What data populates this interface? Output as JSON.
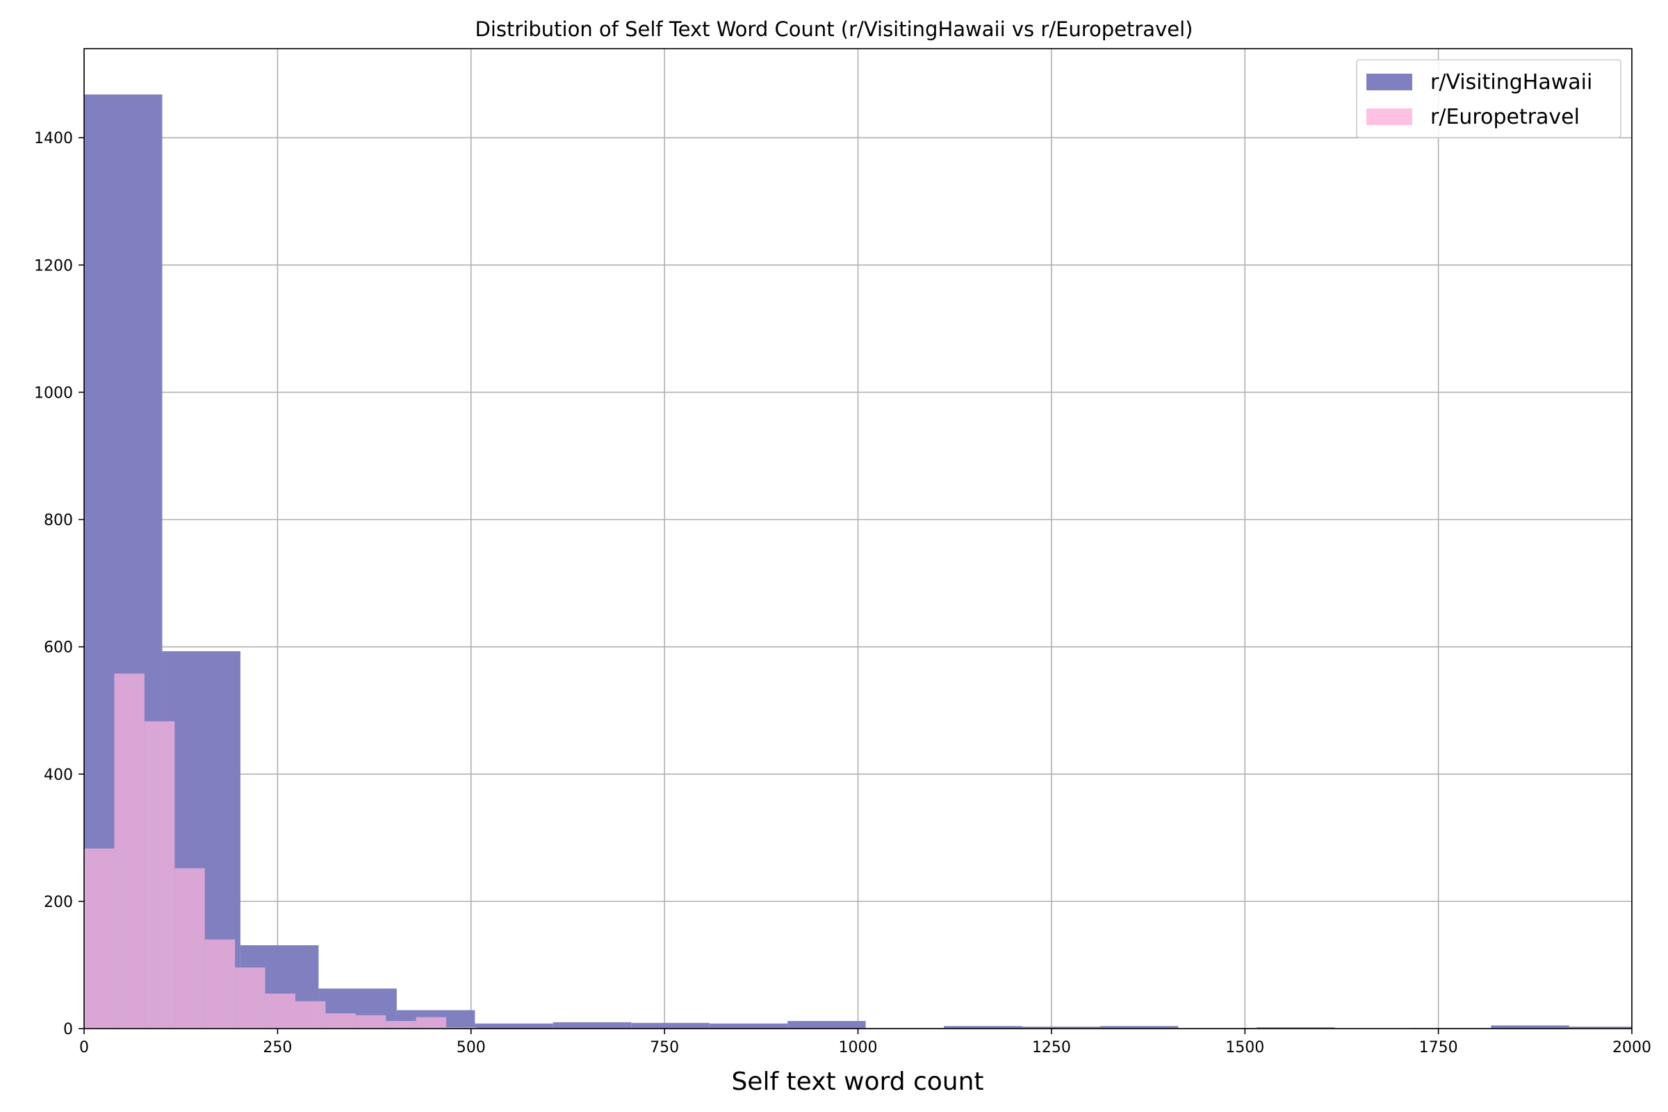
{
  "chart_data": {
    "type": "bar",
    "title": "Distribution of Self Text Word Count (r/VisitingHawaii vs r/Europetravel)",
    "xlabel": "Self text word count",
    "ylabel": "",
    "xlim": [
      0,
      2000
    ],
    "ylim": [
      0,
      1540
    ],
    "xticks": [
      0,
      250,
      500,
      750,
      1000,
      1250,
      1500,
      1750,
      2000
    ],
    "yticks": [
      0,
      200,
      400,
      600,
      800,
      1000,
      1200,
      1400
    ],
    "grid": true,
    "legend_position": "top-right",
    "series": [
      {
        "name": "r/VisitingHawaii",
        "color": "#8080c0",
        "bins": [
          {
            "x0": 0,
            "x1": 101,
            "count": 1468
          },
          {
            "x0": 101,
            "x1": 202,
            "count": 593
          },
          {
            "x0": 202,
            "x1": 303,
            "count": 131
          },
          {
            "x0": 303,
            "x1": 404,
            "count": 63
          },
          {
            "x0": 404,
            "x1": 505,
            "count": 29
          },
          {
            "x0": 505,
            "x1": 606,
            "count": 8
          },
          {
            "x0": 606,
            "x1": 707,
            "count": 10
          },
          {
            "x0": 707,
            "x1": 808,
            "count": 9
          },
          {
            "x0": 808,
            "x1": 909,
            "count": 8
          },
          {
            "x0": 909,
            "x1": 1010,
            "count": 12
          },
          {
            "x0": 1010,
            "x1": 1111,
            "count": 1
          },
          {
            "x0": 1111,
            "x1": 1212,
            "count": 4
          },
          {
            "x0": 1212,
            "x1": 1313,
            "count": 3
          },
          {
            "x0": 1313,
            "x1": 1414,
            "count": 4
          },
          {
            "x0": 1414,
            "x1": 1515,
            "count": 1
          },
          {
            "x0": 1515,
            "x1": 1616,
            "count": 2
          },
          {
            "x0": 1616,
            "x1": 1717,
            "count": 0
          },
          {
            "x0": 1717,
            "x1": 1818,
            "count": 1
          },
          {
            "x0": 1818,
            "x1": 1919,
            "count": 5
          },
          {
            "x0": 1919,
            "x1": 2020,
            "count": 3
          }
        ]
      },
      {
        "name": "r/Europetravel",
        "color": "#ffb6de",
        "bins": [
          {
            "x0": 0,
            "x1": 39,
            "count": 283
          },
          {
            "x0": 39,
            "x1": 78,
            "count": 558
          },
          {
            "x0": 78,
            "x1": 117,
            "count": 483
          },
          {
            "x0": 117,
            "x1": 156,
            "count": 252
          },
          {
            "x0": 156,
            "x1": 195,
            "count": 140
          },
          {
            "x0": 195,
            "x1": 234,
            "count": 96
          },
          {
            "x0": 234,
            "x1": 273,
            "count": 55
          },
          {
            "x0": 273,
            "x1": 312,
            "count": 43
          },
          {
            "x0": 312,
            "x1": 351,
            "count": 24
          },
          {
            "x0": 351,
            "x1": 390,
            "count": 21
          },
          {
            "x0": 390,
            "x1": 429,
            "count": 12
          },
          {
            "x0": 429,
            "x1": 468,
            "count": 18
          },
          {
            "x0": 468,
            "x1": 507,
            "count": 2
          }
        ]
      }
    ]
  }
}
